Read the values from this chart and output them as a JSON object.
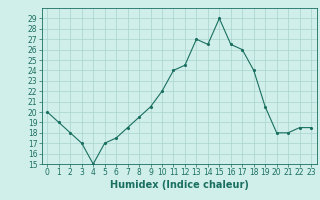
{
  "x": [
    0,
    1,
    2,
    3,
    4,
    5,
    6,
    7,
    8,
    9,
    10,
    11,
    12,
    13,
    14,
    15,
    16,
    17,
    18,
    19,
    20,
    21,
    22,
    23
  ],
  "y": [
    20,
    19,
    18,
    17,
    15,
    17,
    17.5,
    18.5,
    19.5,
    20.5,
    22,
    24,
    24.5,
    27,
    26.5,
    29,
    26.5,
    26,
    24,
    20.5,
    18,
    18,
    18.5,
    18.5
  ],
  "line_color": "#1a7060",
  "marker_color": "#1a7060",
  "bg_color": "#d0eeea",
  "grid_color": "#aad4ce",
  "xlabel": "Humidex (Indice chaleur)",
  "ylim": [
    15,
    30
  ],
  "xlim": [
    -0.5,
    23.5
  ],
  "yticks": [
    15,
    16,
    17,
    18,
    19,
    20,
    21,
    22,
    23,
    24,
    25,
    26,
    27,
    28,
    29
  ],
  "xticks": [
    0,
    1,
    2,
    3,
    4,
    5,
    6,
    7,
    8,
    9,
    10,
    11,
    12,
    13,
    14,
    15,
    16,
    17,
    18,
    19,
    20,
    21,
    22,
    23
  ],
  "tick_fontsize": 5.5,
  "xlabel_fontsize": 7
}
